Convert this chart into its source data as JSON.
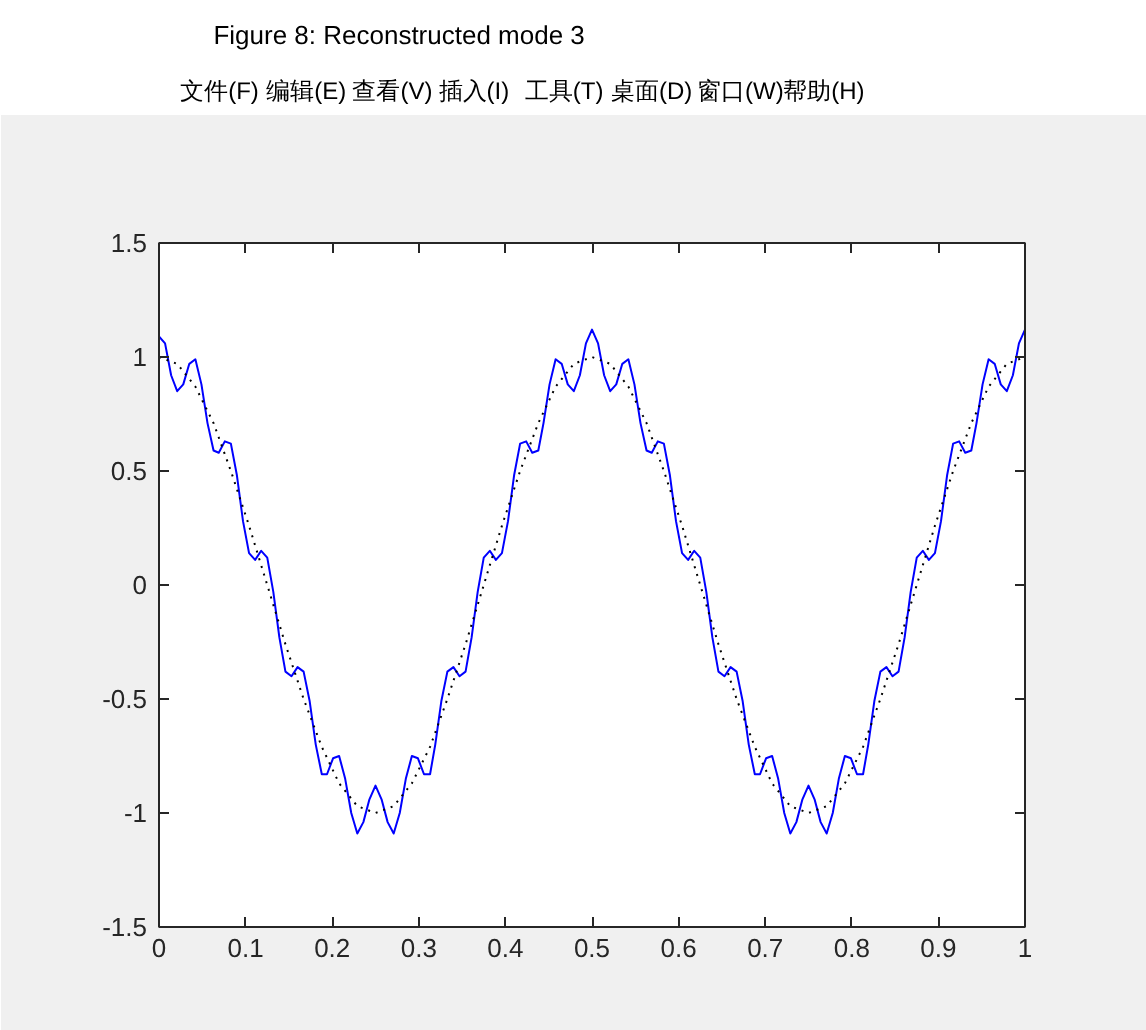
{
  "chart_data": {
    "type": "line",
    "title": "Figure 8: Reconstructed mode 3",
    "annotations": [
      "文件(F)",
      "编辑(E)",
      "查看(V)",
      "插入(I)",
      "工具(T)",
      "桌面(D)",
      "窗口(W)",
      "帮助(H)"
    ],
    "xlim": [
      0,
      1
    ],
    "ylim": [
      -1.5,
      1.5
    ],
    "xticks": [
      0,
      0.1,
      0.2,
      0.3,
      0.4,
      0.5,
      0.6,
      0.7,
      0.8,
      0.9,
      1
    ],
    "yticks": [
      -1.5,
      -1,
      -0.5,
      0,
      0.5,
      1,
      1.5
    ],
    "grid": false,
    "line_style": "solid",
    "series": [
      {
        "color": "#0000ff",
        "x": [
          0,
          0.007,
          0.014,
          0.021,
          0.028,
          0.035,
          0.042,
          0.049,
          0.056,
          0.063,
          0.069,
          0.076,
          0.083,
          0.09,
          0.097,
          0.104,
          0.111,
          0.118,
          0.125,
          0.132,
          0.139,
          0.146,
          0.153,
          0.16,
          0.167,
          0.174,
          0.181,
          0.188,
          0.194,
          0.201,
          0.208,
          0.215,
          0.222,
          0.229,
          0.236,
          0.243,
          0.25,
          0.257,
          0.264,
          0.271,
          0.278,
          0.285,
          0.292,
          0.299,
          0.306,
          0.313,
          0.319,
          0.326,
          0.333,
          0.34,
          0.347,
          0.354,
          0.361,
          0.368,
          0.375,
          0.382,
          0.389,
          0.396,
          0.403,
          0.41,
          0.417,
          0.424,
          0.431,
          0.438,
          0.444,
          0.451,
          0.458,
          0.465,
          0.472,
          0.479,
          0.486,
          0.493,
          0.5,
          0.507,
          0.514,
          0.521,
          0.528,
          0.535,
          0.542,
          0.549,
          0.556,
          0.563,
          0.569,
          0.576,
          0.583,
          0.59,
          0.597,
          0.604,
          0.611,
          0.618,
          0.625,
          0.632,
          0.639,
          0.646,
          0.653,
          0.66,
          0.667,
          0.674,
          0.681,
          0.688,
          0.694,
          0.701,
          0.708,
          0.715,
          0.722,
          0.729,
          0.736,
          0.743,
          0.75,
          0.757,
          0.764,
          0.771,
          0.778,
          0.785,
          0.792,
          0.799,
          0.806,
          0.813,
          0.819,
          0.826,
          0.833,
          0.84,
          0.847,
          0.854,
          0.861,
          0.868,
          0.875,
          0.882,
          0.889,
          0.896,
          0.903,
          0.91,
          0.917,
          0.924,
          0.931,
          0.938,
          0.944,
          0.951,
          0.958,
          0.965,
          0.972,
          0.979,
          0.986,
          0.993,
          1
        ],
        "values": [
          1.09,
          1.06,
          0.92,
          0.85,
          0.88,
          0.97,
          0.99,
          0.88,
          0.71,
          0.59,
          0.58,
          0.63,
          0.62,
          0.48,
          0.28,
          0.14,
          0.11,
          0.15,
          0.12,
          -0.03,
          -0.23,
          -0.38,
          -0.4,
          -0.36,
          -0.38,
          -0.51,
          -0.7,
          -0.83,
          -0.83,
          -0.76,
          -0.75,
          -0.85,
          -1.0,
          -1.09,
          -1.04,
          -0.94,
          -0.88,
          -0.94,
          -1.04,
          -1.09,
          -1.0,
          -0.85,
          -0.75,
          -0.76,
          -0.83,
          -0.83,
          -0.7,
          -0.51,
          -0.38,
          -0.36,
          -0.4,
          -0.38,
          -0.23,
          -0.03,
          0.12,
          0.15,
          0.11,
          0.14,
          0.28,
          0.48,
          0.62,
          0.63,
          0.58,
          0.59,
          0.71,
          0.88,
          0.99,
          0.97,
          0.88,
          0.85,
          0.92,
          1.06,
          1.12,
          1.06,
          0.92,
          0.85,
          0.88,
          0.97,
          0.99,
          0.88,
          0.71,
          0.59,
          0.58,
          0.63,
          0.62,
          0.48,
          0.28,
          0.14,
          0.11,
          0.15,
          0.12,
          -0.03,
          -0.23,
          -0.38,
          -0.4,
          -0.36,
          -0.38,
          -0.51,
          -0.7,
          -0.83,
          -0.83,
          -0.76,
          -0.75,
          -0.85,
          -1.0,
          -1.09,
          -1.04,
          -0.94,
          -0.88,
          -0.94,
          -1.04,
          -1.09,
          -1.0,
          -0.85,
          -0.75,
          -0.76,
          -0.83,
          -0.83,
          -0.7,
          -0.51,
          -0.38,
          -0.36,
          -0.4,
          -0.38,
          -0.23,
          -0.03,
          0.12,
          0.15,
          0.11,
          0.14,
          0.28,
          0.48,
          0.62,
          0.63,
          0.58,
          0.59,
          0.71,
          0.88,
          0.99,
          0.97,
          0.88,
          0.85,
          0.92,
          1.06,
          1.12
        ]
      },
      {
        "color": "#000000",
        "line_style": "dotted",
        "x": [
          0,
          0.021,
          0.042,
          0.063,
          0.083,
          0.104,
          0.125,
          0.146,
          0.167,
          0.188,
          0.208,
          0.229,
          0.25,
          0.271,
          0.292,
          0.313,
          0.333,
          0.354,
          0.375,
          0.396,
          0.417,
          0.438,
          0.458,
          0.479,
          0.5,
          0.521,
          0.542,
          0.563,
          0.583,
          0.604,
          0.625,
          0.646,
          0.667,
          0.688,
          0.708,
          0.729,
          0.75,
          0.771,
          0.792,
          0.813,
          0.833,
          0.854,
          0.875,
          0.896,
          0.917,
          0.938,
          0.958,
          0.979,
          1
        ],
        "values": [
          1,
          0.97,
          0.87,
          0.71,
          0.5,
          0.26,
          0,
          -0.26,
          -0.5,
          -0.71,
          -0.87,
          -0.97,
          -1,
          -0.97,
          -0.87,
          -0.71,
          -0.5,
          -0.26,
          0,
          0.26,
          0.5,
          0.71,
          0.87,
          0.97,
          1,
          0.97,
          0.87,
          0.71,
          0.5,
          0.26,
          0,
          -0.26,
          -0.5,
          -0.71,
          -0.87,
          -0.97,
          -1,
          -0.97,
          -0.87,
          -0.71,
          -0.5,
          -0.26,
          0,
          0.26,
          0.5,
          0.71,
          0.87,
          0.97,
          1
        ]
      }
    ]
  }
}
